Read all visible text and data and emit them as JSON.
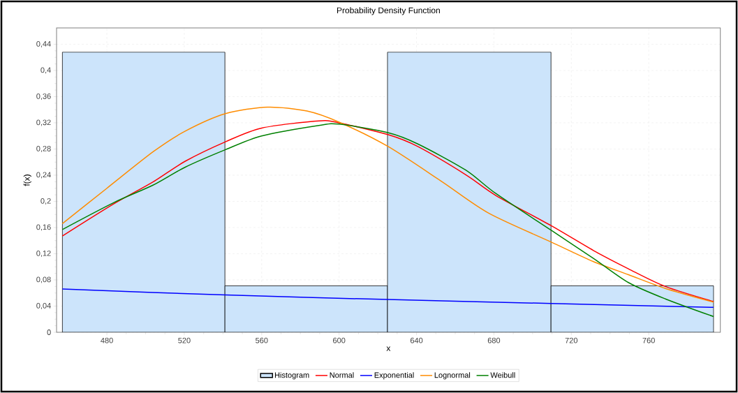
{
  "chart_data": {
    "type": "histogram",
    "title": "Probability Density Function",
    "xlabel": "x",
    "ylabel": "f(x)",
    "xlim": [
      454,
      797
    ],
    "ylim": [
      0,
      0.465
    ],
    "xticks": [
      480,
      520,
      560,
      600,
      640,
      680,
      720,
      760
    ],
    "yticks": [
      {
        "value": 0,
        "label": "0"
      },
      {
        "value": 0.04,
        "label": "0,04"
      },
      {
        "value": 0.08,
        "label": "0,08"
      },
      {
        "value": 0.12,
        "label": "0,12"
      },
      {
        "value": 0.16,
        "label": "0,16"
      },
      {
        "value": 0.2,
        "label": "0,2"
      },
      {
        "value": 0.24,
        "label": "0,24"
      },
      {
        "value": 0.28,
        "label": "0,28"
      },
      {
        "value": 0.32,
        "label": "0,32"
      },
      {
        "value": 0.36,
        "label": "0,36"
      },
      {
        "value": 0.4,
        "label": "0,4"
      },
      {
        "value": 0.44,
        "label": "0,44"
      }
    ],
    "grid": true,
    "legend": "bottom",
    "series": [
      {
        "name": "Histogram",
        "color": "#cce4fb",
        "bins": [
          457,
          541,
          625,
          709.5,
          793.5
        ],
        "values": [
          0.428,
          0.071,
          0.428,
          0.071
        ]
      },
      {
        "name": "Normal",
        "type": "line",
        "color": "#ff0000",
        "x": [
          457,
          483.5,
          504,
          520.3,
          541.3,
          560,
          589.5,
          600,
          625.2,
          640.5,
          665.3,
          681,
          709.5,
          731.4,
          749.5,
          768.6,
          793.5
        ],
        "values": [
          0.147,
          0.196,
          0.23,
          0.261,
          0.291,
          0.312,
          0.323,
          0.32,
          0.302,
          0.284,
          0.241,
          0.209,
          0.163,
          0.125,
          0.097,
          0.07,
          0.047
        ]
      },
      {
        "name": "Exponential",
        "type": "line",
        "color": "#0000ff",
        "x": [
          457,
          541.3,
          625.2,
          709.5,
          793.5
        ],
        "values": [
          0.066,
          0.057,
          0.05,
          0.044,
          0.038
        ]
      },
      {
        "name": "Lognormal",
        "type": "line",
        "color": "#ff8c00",
        "x": [
          457,
          480,
          504,
          520.3,
          541.3,
          563,
          583.4,
          600,
          625.2,
          653.2,
          677.3,
          709.5,
          731.4,
          749.5,
          768.6,
          793.5
        ],
        "values": [
          0.166,
          0.22,
          0.276,
          0.307,
          0.334,
          0.344,
          0.338,
          0.321,
          0.284,
          0.23,
          0.182,
          0.138,
          0.108,
          0.088,
          0.067,
          0.046
        ]
      },
      {
        "name": "Weibull",
        "type": "line",
        "color": "#008000",
        "x": [
          457,
          483.5,
          504,
          520.3,
          541.3,
          560,
          589.5,
          600,
          625.2,
          640.5,
          665.3,
          681,
          709.5,
          731.4,
          749.5,
          768.6,
          793.5
        ],
        "values": [
          0.157,
          0.198,
          0.225,
          0.252,
          0.279,
          0.3,
          0.316,
          0.318,
          0.305,
          0.288,
          0.248,
          0.212,
          0.156,
          0.113,
          0.076,
          0.051,
          0.024
        ]
      }
    ]
  }
}
